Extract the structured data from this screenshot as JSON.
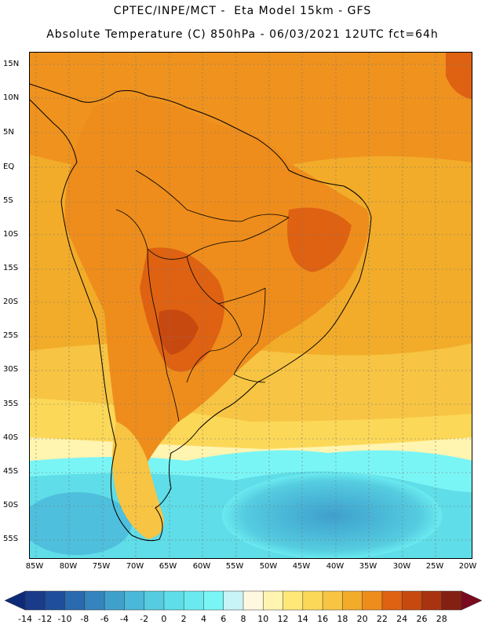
{
  "header": {
    "line1": "CPTEC/INPE/MCT -  Eta Model 15km - GFS",
    "line2": "Absolute Temperature (C) 850hPa - 06/03/2021 12UTC fct=64h"
  },
  "map": {
    "lat_labels": [
      "15N",
      "10N",
      "5N",
      "EQ",
      "5S",
      "10S",
      "15S",
      "20S",
      "25S",
      "30S",
      "35S",
      "40S",
      "45S",
      "50S",
      "55S"
    ],
    "lon_labels": [
      "85W",
      "80W",
      "75W",
      "70W",
      "65W",
      "60W",
      "55W",
      "50W",
      "45W",
      "40W",
      "35W",
      "30W",
      "25W",
      "20W"
    ]
  },
  "colorbar": {
    "labels": [
      "-14",
      "-12",
      "-10",
      "-8",
      "-6",
      "-4",
      "-2",
      "0",
      "2",
      "4",
      "6",
      "8",
      "10",
      "12",
      "14",
      "16",
      "18",
      "20",
      "22",
      "24",
      "26",
      "28"
    ],
    "colors": [
      "#1a3a8a",
      "#1f4f9c",
      "#2a6aae",
      "#3584bd",
      "#3fa0cc",
      "#4ab8d8",
      "#55cce0",
      "#5fdde8",
      "#6aeaf0",
      "#7af5f5",
      "#c8f3f7",
      "#fff8e0",
      "#fff4b0",
      "#ffe878",
      "#fcd858",
      "#f7c443",
      "#f2ac2a",
      "#ee8d1c",
      "#de6212",
      "#c84910",
      "#a83310",
      "#832012"
    ],
    "end_low_color": "#0d2a78",
    "end_high_color": "#7a0a1e"
  }
}
